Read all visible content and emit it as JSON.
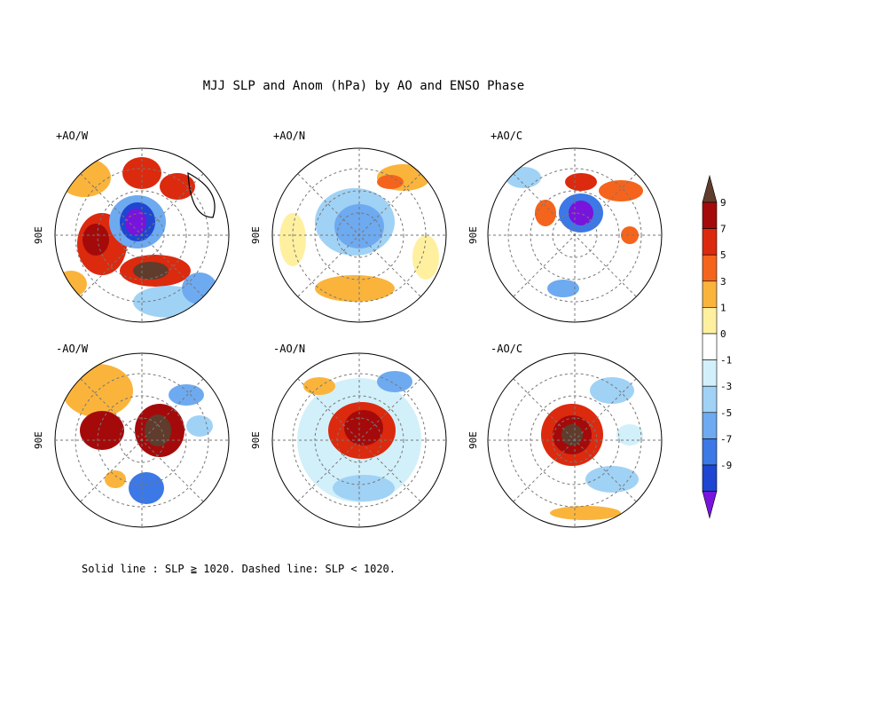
{
  "title": "MJJ SLP and Anom (hPa) by AO and ENSO Phase",
  "footnote": "Solid line : SLP ≧ 1020.  Dashed line: SLP < 1020.",
  "lon_label": "90E",
  "panels": [
    {
      "label": "+AO/W"
    },
    {
      "label": "+AO/N"
    },
    {
      "label": "+AO/C"
    },
    {
      "label": "-AO/W"
    },
    {
      "label": "-AO/N"
    },
    {
      "label": "-AO/C"
    }
  ],
  "colorbar": {
    "ticks": [
      "9",
      "7",
      "5",
      "3",
      "1",
      "0",
      "-1",
      "-3",
      "-5",
      "-7",
      "-9"
    ],
    "colors": [
      "#603c2c",
      "#a50a0a",
      "#dc2a0e",
      "#f5641c",
      "#fab43c",
      "#fff0a0",
      "#ffffff",
      "#d2f0fa",
      "#a0d2f5",
      "#6eaaf0",
      "#3c78e6",
      "#1e46d2",
      "#7814dc"
    ]
  }
}
